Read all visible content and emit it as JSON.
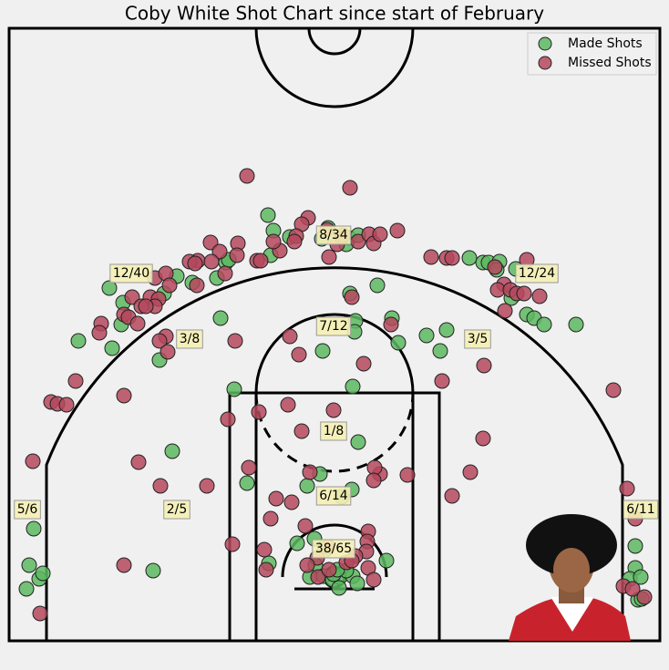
{
  "chart_data": {
    "type": "scatter",
    "title": "Coby White Shot Chart since start of February",
    "xlim": [
      -357,
      357
    ],
    "ylim": [
      -70,
      602
    ],
    "legend": "upper right",
    "series": [
      {
        "name": "Made Shots",
        "color": "#5cb860",
        "x": [
          -330,
          -335,
          -324,
          -320,
          -338,
          -247,
          -232,
          -234,
          -244,
          -281,
          -192,
          -187,
          -173,
          -156,
          -129,
          -119,
          -116,
          -125,
          -110,
          -178,
          -73,
          -67,
          -70,
          -49,
          -14,
          -7,
          16,
          26,
          13,
          17,
          47,
          148,
          163,
          169,
          181,
          178,
          199,
          194,
          211,
          219,
          230,
          265,
          101,
          123,
          116,
          70,
          63,
          23,
          22,
          -13,
          20,
          330,
          330,
          324,
          336,
          333,
          337,
          26,
          -16,
          -30,
          19,
          8,
          -96,
          -199,
          -41,
          -22,
          -11,
          -21,
          -27,
          -12,
          -2,
          6,
          5,
          20,
          25,
          13,
          57,
          -72,
          -1,
          3
        ],
        "values": [
          53,
          13,
          -2,
          4,
          -13,
          317,
          301,
          277,
          251,
          259,
          238,
          311,
          330,
          323,
          328,
          345,
          348,
          284,
          206,
          138,
          397,
          380,
          353,
          373,
          371,
          383,
          372,
          375,
          365,
          311,
          320,
          350,
          345,
          345,
          346,
          337,
          338,
          306,
          288,
          284,
          277,
          277,
          265,
          271,
          248,
          257,
          284,
          281,
          269,
          248,
          209,
          34,
          10,
          -2,
          0,
          -25,
          -24,
          148,
          113,
          100,
          96,
          88,
          103,
          7,
          37,
          42,
          29,
          13,
          0,
          1,
          -3,
          0,
          -12,
          1,
          -7,
          7,
          18,
          15,
          3,
          8
        ]
      },
      {
        "name": "Missed Shots",
        "color": "#b5485d",
        "x": [
          -96,
          17,
          -29,
          -36,
          -42,
          -44,
          -60,
          -67,
          -8,
          3,
          8,
          26,
          38,
          43,
          50,
          69,
          -6,
          9,
          -85,
          -81,
          -106,
          -107,
          -136,
          -126,
          -150,
          -159,
          -153,
          -120,
          -135,
          -197,
          -185,
          -181,
          -151,
          -222,
          -202,
          -193,
          -197,
          -212,
          -207,
          -231,
          -226,
          -216,
          -256,
          -258,
          -185,
          -192,
          -183,
          -109,
          -284,
          -311,
          -304,
          -294,
          -231,
          -331,
          -215,
          -191,
          -140,
          -117,
          -83,
          -51,
          -36,
          -1,
          -49,
          -39,
          32,
          62,
          19,
          118,
          164,
          106,
          123,
          129,
          176,
          211,
          186,
          179,
          193,
          200,
          208,
          225,
          187,
          306,
          163,
          149,
          129,
          80,
          50,
          44,
          43,
          -27,
          -64,
          -47,
          -70,
          -94,
          -112,
          -77,
          -75,
          -231,
          -323,
          321,
          330,
          317,
          327,
          340,
          37,
          36,
          35,
          23,
          37,
          43,
          -7,
          -19,
          -30,
          -18,
          -6,
          13,
          19,
          -32
        ],
        "values": [
          440,
          427,
          394,
          387,
          374,
          368,
          358,
          368,
          381,
          365,
          373,
          368,
          376,
          366,
          376,
          380,
          351,
          375,
          347,
          347,
          366,
          353,
          367,
          357,
          347,
          346,
          344,
          333,
          346,
          328,
          333,
          320,
          320,
          307,
          307,
          305,
          297,
          297,
          297,
          288,
          285,
          278,
          278,
          268,
          264,
          259,
          247,
          259,
          215,
          192,
          190,
          189,
          199,
          127,
          126,
          100,
          100,
          173,
          181,
          189,
          160,
          183,
          264,
          244,
          234,
          277,
          307,
          215,
          232,
          351,
          350,
          350,
          340,
          348,
          321,
          315,
          315,
          311,
          311,
          308,
          292,
          205,
          152,
          115,
          89,
          112,
          113,
          120,
          106,
          115,
          86,
          82,
          64,
          120,
          36,
          30,
          8,
          13,
          -40,
          97,
          64,
          -10,
          -13,
          -22,
          50,
          39,
          28,
          23,
          10,
          -3,
          33,
          21,
          13,
          0,
          8,
          16,
          18,
          56
        ]
      }
    ],
    "annotations": [
      "8/34",
      "12/40",
      "12/24",
      "7/12",
      "3/8",
      "3/5",
      "1/8",
      "5/6",
      "2/5",
      "6/14",
      "6/11",
      "38/65"
    ]
  }
}
